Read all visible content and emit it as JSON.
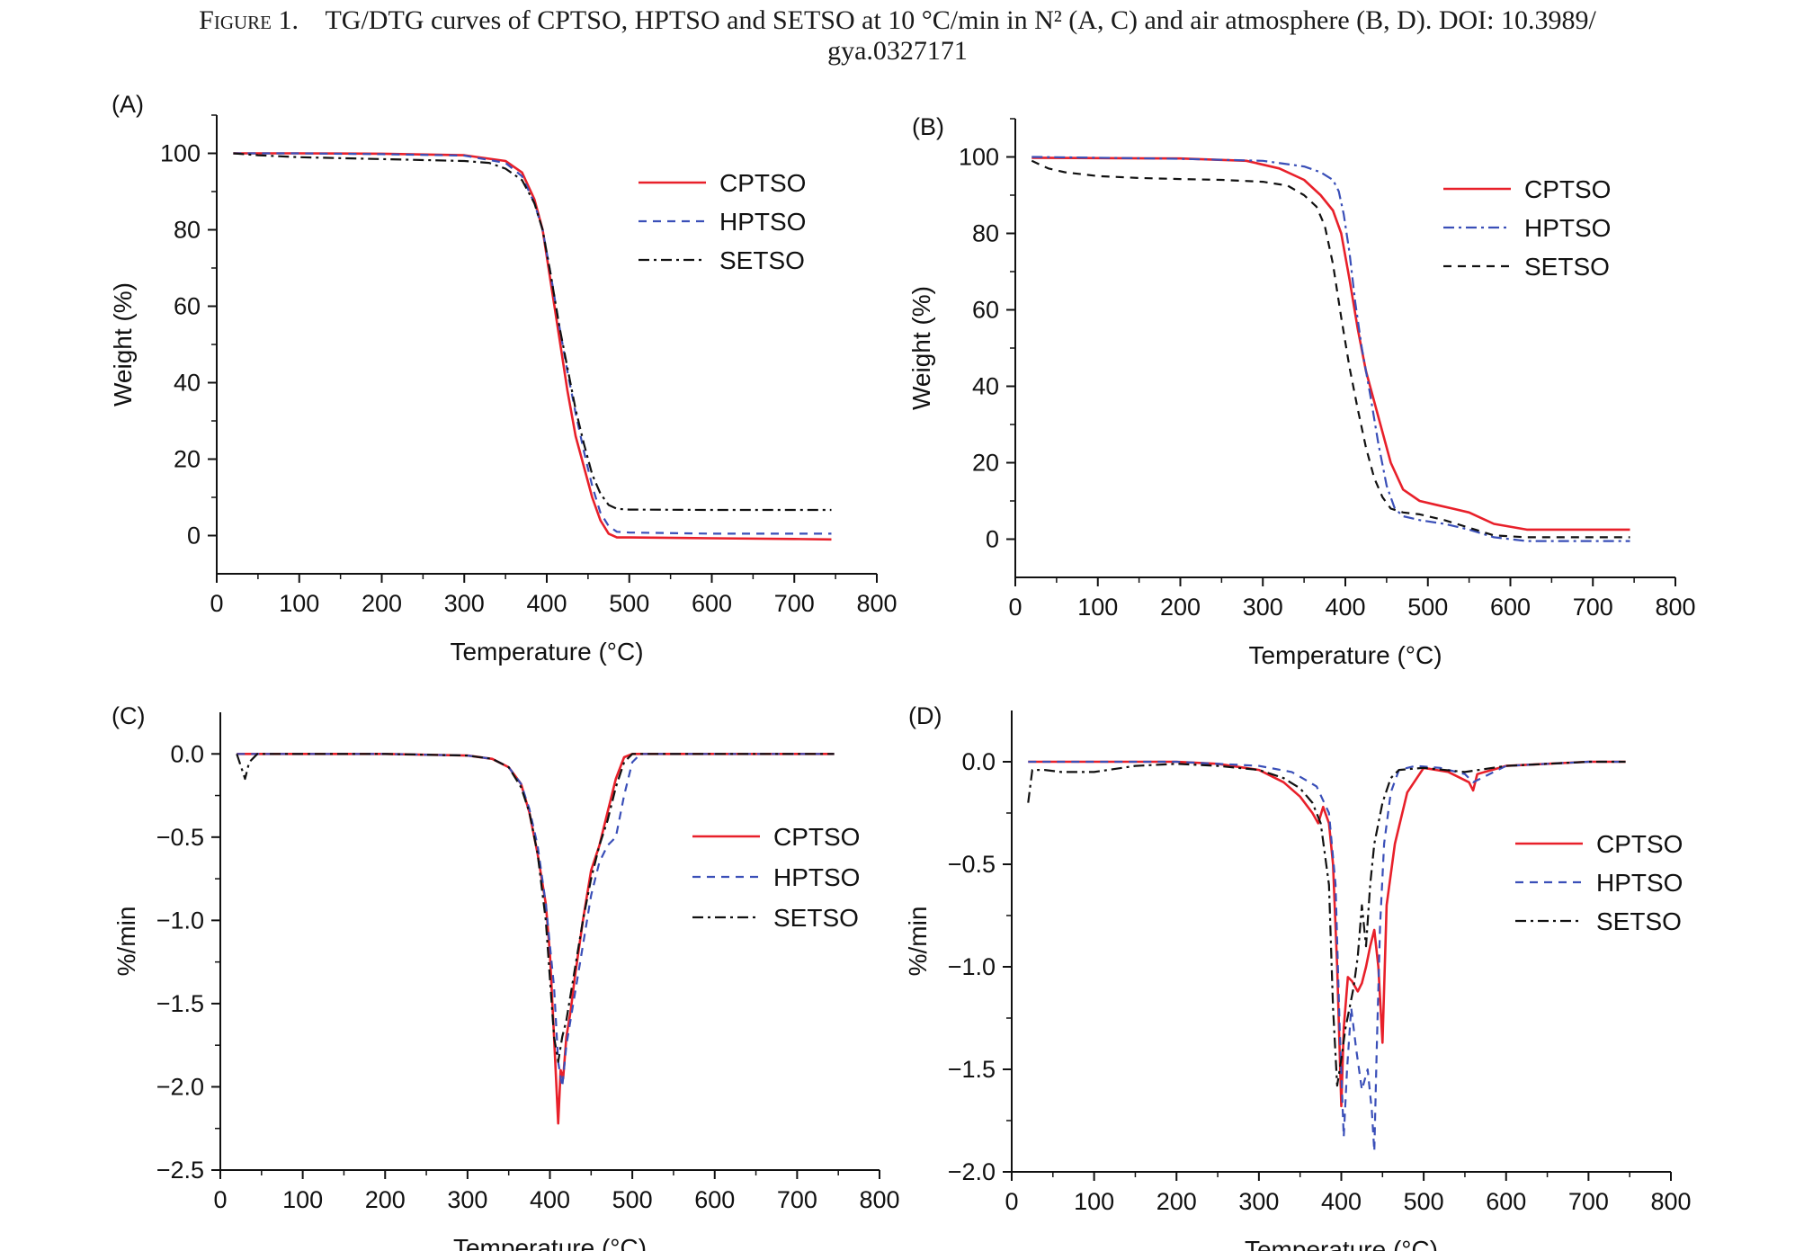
{
  "caption": {
    "figure_label": "Figure 1.",
    "line1": "TG/DTG curves of CPTSO, HPTSO and SETSO at 10 °C/min in N² (A, C) and air atmosphere (B, D). DOI: 10.3989/",
    "line2": "gya.0327171"
  },
  "colors": {
    "CPTSO": "#e8202a",
    "HPTSO": "#3a4fb8",
    "SETSO": "#111111"
  },
  "chart_data": [
    {
      "panel": "(A)",
      "type": "line",
      "xlabel": "Temperature (°C)",
      "ylabel": "Weight (%)",
      "xlim": [
        0,
        800
      ],
      "ylim": [
        -10,
        110
      ],
      "xticks": [
        0,
        100,
        200,
        300,
        400,
        500,
        600,
        700,
        800
      ],
      "yticks": [
        0,
        20,
        40,
        60,
        80,
        100
      ],
      "legend": "top-right",
      "grid": false,
      "series": [
        {
          "name": "CPTSO",
          "style": "solid",
          "x": [
            20,
            100,
            200,
            300,
            350,
            370,
            385,
            395,
            405,
            415,
            425,
            435,
            445,
            455,
            465,
            475,
            485,
            500,
            600,
            700,
            745
          ],
          "y": [
            100,
            100,
            99.9,
            99.5,
            98,
            95,
            88,
            80,
            66,
            52,
            38,
            26,
            18,
            10,
            4,
            0.5,
            -0.5,
            -0.5,
            -0.7,
            -0.9,
            -1
          ]
        },
        {
          "name": "HPTSO",
          "style": "dashed",
          "x": [
            20,
            100,
            200,
            300,
            350,
            370,
            385,
            395,
            405,
            415,
            425,
            435,
            445,
            455,
            465,
            475,
            485,
            500,
            600,
            700,
            745
          ],
          "y": [
            100,
            100,
            99.8,
            99.4,
            97.5,
            94,
            87,
            80,
            68,
            55,
            43,
            32,
            22,
            13,
            6,
            2.5,
            1,
            0.8,
            0.5,
            0.5,
            0.5
          ]
        },
        {
          "name": "SETSO",
          "style": "dashdot",
          "x": [
            20,
            50,
            100,
            200,
            300,
            330,
            350,
            370,
            385,
            395,
            405,
            415,
            425,
            435,
            445,
            455,
            465,
            475,
            485,
            500,
            600,
            700,
            745
          ],
          "y": [
            100,
            99.5,
            99,
            98.5,
            98,
            97.5,
            96,
            93,
            87,
            80,
            68,
            55,
            44,
            33,
            24,
            16,
            11,
            8,
            7,
            6.8,
            6.7,
            6.7,
            6.7
          ]
        }
      ]
    },
    {
      "panel": "(B)",
      "type": "line",
      "xlabel": "Temperature (°C)",
      "ylabel": "Weight (%)",
      "xlim": [
        0,
        800
      ],
      "ylim": [
        -10,
        110
      ],
      "xticks": [
        0,
        100,
        200,
        300,
        400,
        500,
        600,
        700,
        800
      ],
      "yticks": [
        0,
        20,
        40,
        60,
        80,
        100
      ],
      "legend": "top-right",
      "grid": false,
      "series": [
        {
          "name": "CPTSO",
          "style": "solid",
          "x": [
            20,
            100,
            200,
            280,
            320,
            350,
            370,
            385,
            395,
            405,
            415,
            425,
            435,
            445,
            455,
            470,
            490,
            510,
            530,
            550,
            580,
            620,
            700,
            745
          ],
          "y": [
            99.8,
            99.7,
            99.6,
            99,
            97,
            94,
            90,
            86,
            80,
            68,
            55,
            44,
            36,
            28,
            20,
            13,
            10,
            9,
            8,
            7,
            4,
            2.5,
            2.5,
            2.5
          ]
        },
        {
          "name": "HPTSO",
          "style": "dashdot",
          "x": [
            20,
            100,
            200,
            300,
            350,
            370,
            385,
            392,
            398,
            405,
            412,
            420,
            430,
            440,
            450,
            460,
            470,
            490,
            520,
            550,
            580,
            620,
            700,
            745
          ],
          "y": [
            100,
            99.8,
            99.5,
            99,
            97.5,
            96,
            94,
            91,
            85,
            75,
            62,
            50,
            38,
            25,
            14,
            8,
            6,
            5,
            4,
            2.5,
            0.5,
            -0.5,
            -0.5,
            -0.5
          ]
        },
        {
          "name": "SETSO",
          "style": "dashed",
          "x": [
            20,
            40,
            60,
            100,
            150,
            200,
            250,
            300,
            330,
            350,
            365,
            375,
            385,
            395,
            405,
            415,
            425,
            435,
            445,
            455,
            470,
            490,
            520,
            550,
            580,
            620,
            700,
            745
          ],
          "y": [
            99,
            97,
            96,
            95,
            94.5,
            94.2,
            94,
            93.5,
            92.5,
            90,
            87,
            82,
            72,
            58,
            45,
            34,
            24,
            16,
            11,
            8,
            7,
            6.5,
            5,
            3,
            1,
            0.5,
            0.5,
            0.5
          ]
        }
      ]
    },
    {
      "panel": "(C)",
      "type": "line",
      "xlabel": "Temperature (°C)",
      "ylabel": "%/min",
      "xlim": [
        0,
        800
      ],
      "ylim": [
        -2.5,
        0.25
      ],
      "xticks": [
        0,
        100,
        200,
        300,
        400,
        500,
        600,
        700,
        800
      ],
      "yticks": [
        0.0,
        -0.5,
        -1.0,
        -1.5,
        -2.0,
        -2.5
      ],
      "legend": "right",
      "grid": false,
      "series": [
        {
          "name": "CPTSO",
          "style": "solid",
          "x": [
            20,
            30,
            50,
            100,
            200,
            300,
            330,
            350,
            365,
            375,
            385,
            395,
            400,
            405,
            410,
            413,
            416,
            420,
            425,
            430,
            440,
            450,
            460,
            470,
            480,
            490,
            500,
            600,
            700,
            745
          ],
          "y": [
            0,
            0,
            0,
            0,
            0,
            -0.01,
            -0.03,
            -0.08,
            -0.18,
            -0.35,
            -0.6,
            -0.9,
            -1.2,
            -1.7,
            -2.22,
            -1.9,
            -1.95,
            -1.7,
            -1.55,
            -1.35,
            -1.0,
            -0.7,
            -0.55,
            -0.35,
            -0.15,
            -0.02,
            0,
            0,
            0,
            0
          ]
        },
        {
          "name": "HPTSO",
          "style": "dashed",
          "x": [
            20,
            30,
            50,
            100,
            200,
            300,
            330,
            350,
            365,
            375,
            385,
            395,
            405,
            410,
            415,
            420,
            425,
            430,
            440,
            450,
            460,
            470,
            480,
            490,
            500,
            510,
            600,
            700,
            745
          ],
          "y": [
            0,
            0,
            0,
            0,
            0,
            -0.01,
            -0.03,
            -0.08,
            -0.18,
            -0.33,
            -0.55,
            -0.9,
            -1.4,
            -1.85,
            -2.0,
            -1.75,
            -1.6,
            -1.45,
            -1.15,
            -0.85,
            -0.65,
            -0.55,
            -0.5,
            -0.25,
            -0.05,
            0,
            0,
            0,
            0
          ]
        },
        {
          "name": "SETSO",
          "style": "dashdot",
          "x": [
            20,
            30,
            35,
            45,
            60,
            100,
            200,
            300,
            330,
            350,
            365,
            375,
            385,
            395,
            405,
            410,
            415,
            420,
            430,
            440,
            450,
            460,
            470,
            480,
            490,
            500,
            600,
            700,
            745
          ],
          "y": [
            0,
            -0.15,
            -0.05,
            0,
            0,
            0,
            0,
            -0.01,
            -0.03,
            -0.08,
            -0.2,
            -0.35,
            -0.6,
            -1.0,
            -1.7,
            -1.85,
            -1.7,
            -1.6,
            -1.3,
            -1.0,
            -0.75,
            -0.55,
            -0.4,
            -0.2,
            -0.05,
            0,
            0,
            0,
            0
          ]
        }
      ]
    },
    {
      "panel": "(D)",
      "type": "line",
      "xlabel": "Temperature (°C)",
      "ylabel": "%/min",
      "xlim": [
        0,
        800
      ],
      "ylim": [
        -2.0,
        0.25
      ],
      "xticks": [
        0,
        100,
        200,
        300,
        400,
        500,
        600,
        700,
        800
      ],
      "yticks": [
        0.0,
        -0.5,
        -1.0,
        -1.5,
        -2.0
      ],
      "legend": "right",
      "grid": false,
      "series": [
        {
          "name": "CPTSO",
          "style": "solid",
          "x": [
            20,
            100,
            200,
            250,
            300,
            330,
            350,
            365,
            372,
            378,
            385,
            390,
            395,
            400,
            403,
            408,
            413,
            420,
            425,
            430,
            435,
            440,
            445,
            450,
            455,
            465,
            480,
            500,
            530,
            555,
            560,
            565,
            600,
            700,
            745
          ],
          "y": [
            0,
            0,
            0,
            -0.01,
            -0.04,
            -0.1,
            -0.17,
            -0.25,
            -0.3,
            -0.22,
            -0.3,
            -0.5,
            -1.0,
            -1.68,
            -1.3,
            -1.05,
            -1.07,
            -1.12,
            -1.08,
            -1.0,
            -0.9,
            -0.82,
            -1.0,
            -1.37,
            -0.7,
            -0.4,
            -0.15,
            -0.03,
            -0.05,
            -0.1,
            -0.14,
            -0.06,
            -0.02,
            0,
            0
          ]
        },
        {
          "name": "HPTSO",
          "style": "dashed",
          "x": [
            20,
            100,
            200,
            300,
            340,
            370,
            385,
            393,
            398,
            403,
            407,
            412,
            418,
            425,
            432,
            437,
            440,
            443,
            447,
            452,
            460,
            470,
            490,
            520,
            550,
            560,
            600,
            700,
            745
          ],
          "y": [
            0,
            0,
            0,
            -0.02,
            -0.05,
            -0.12,
            -0.25,
            -0.6,
            -1.3,
            -1.83,
            -1.5,
            -1.2,
            -1.4,
            -1.6,
            -1.5,
            -1.7,
            -1.9,
            -1.4,
            -0.8,
            -0.4,
            -0.15,
            -0.04,
            -0.02,
            -0.03,
            -0.06,
            -0.1,
            -0.02,
            0,
            0
          ]
        },
        {
          "name": "SETSO",
          "style": "dashdot",
          "x": [
            20,
            25,
            40,
            60,
            100,
            150,
            200,
            250,
            300,
            330,
            350,
            365,
            375,
            385,
            390,
            395,
            400,
            405,
            410,
            415,
            420,
            425,
            430,
            435,
            440,
            450,
            460,
            470,
            500,
            550,
            600,
            700,
            745
          ],
          "y": [
            -0.2,
            -0.04,
            -0.04,
            -0.05,
            -0.05,
            -0.02,
            -0.01,
            -0.02,
            -0.04,
            -0.08,
            -0.13,
            -0.2,
            -0.3,
            -0.6,
            -1.2,
            -1.58,
            -1.45,
            -1.3,
            -1.2,
            -1.1,
            -0.95,
            -0.7,
            -0.9,
            -0.6,
            -0.4,
            -0.2,
            -0.08,
            -0.04,
            -0.03,
            -0.05,
            -0.02,
            0,
            0
          ]
        }
      ]
    }
  ]
}
